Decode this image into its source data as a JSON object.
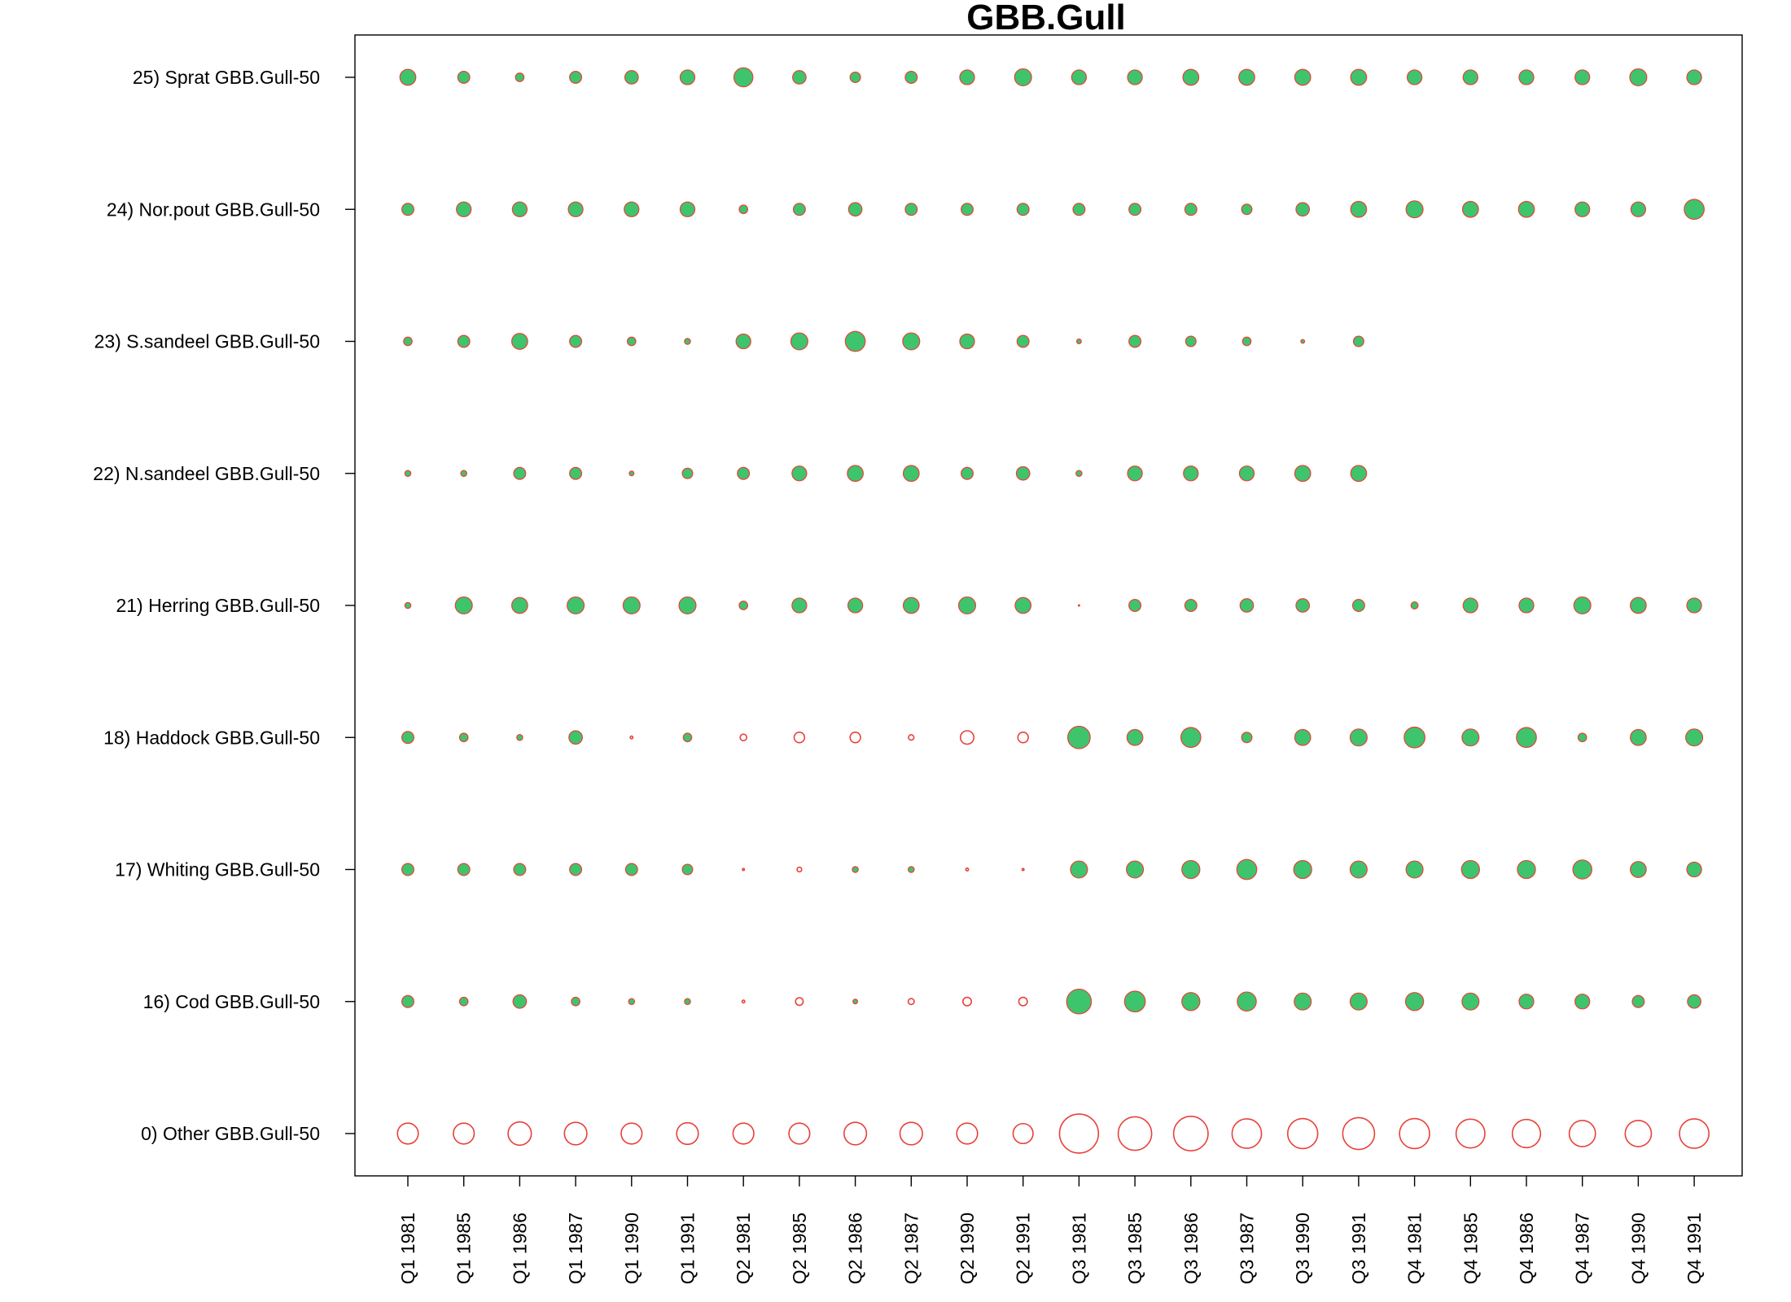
{
  "chart_data": {
    "type": "scatter",
    "title": "GBB.Gull",
    "xlabel": "",
    "ylabel": "",
    "categories": [
      "Q1 1981",
      "Q1 1985",
      "Q1 1986",
      "Q1 1987",
      "Q1 1990",
      "Q1 1991",
      "Q2 1981",
      "Q2 1985",
      "Q2 1986",
      "Q2 1987",
      "Q2 1990",
      "Q2 1991",
      "Q3 1981",
      "Q3 1985",
      "Q3 1986",
      "Q3 1987",
      "Q3 1990",
      "Q3 1991",
      "Q4 1981",
      "Q4 1985",
      "Q4 1986",
      "Q4 1987",
      "Q4 1990",
      "Q4 1991"
    ],
    "rows": [
      {
        "label": "25) Sprat GBB.Gull-50",
        "values": [
          0.35,
          0.2,
          0.1,
          0.2,
          0.25,
          0.3,
          0.5,
          0.25,
          0.15,
          0.2,
          0.3,
          0.4,
          0.3,
          0.3,
          0.35,
          0.35,
          0.35,
          0.35,
          0.3,
          0.3,
          0.3,
          0.3,
          0.4,
          0.3
        ]
      },
      {
        "label": "24) Nor.pout GBB.Gull-50",
        "values": [
          0.2,
          0.3,
          0.3,
          0.3,
          0.3,
          0.3,
          0.1,
          0.2,
          0.25,
          0.2,
          0.2,
          0.2,
          0.2,
          0.2,
          0.2,
          0.15,
          0.25,
          0.35,
          0.4,
          0.35,
          0.35,
          0.3,
          0.3,
          0.55
        ]
      },
      {
        "label": "23) S.sandeel GBB.Gull-50",
        "values": [
          0.1,
          0.2,
          0.35,
          0.2,
          0.1,
          0.05,
          0.3,
          0.4,
          0.55,
          0.4,
          0.3,
          0.2,
          0.03,
          0.2,
          0.15,
          0.1,
          0.02,
          0.15,
          null,
          null,
          null,
          null,
          null,
          null
        ]
      },
      {
        "label": "22) N.sandeel GBB.Gull-50",
        "values": [
          0.05,
          0.05,
          0.2,
          0.2,
          0.03,
          0.15,
          0.2,
          0.3,
          0.35,
          0.35,
          0.2,
          0.25,
          0.05,
          0.3,
          0.3,
          0.3,
          0.35,
          0.35,
          null,
          null,
          null,
          null,
          null,
          null
        ]
      },
      {
        "label": "21) Herring GBB.Gull-50",
        "values": [
          0.05,
          0.4,
          0.35,
          0.4,
          0.4,
          0.4,
          0.1,
          0.3,
          0.3,
          0.35,
          0.4,
          0.35,
          0.003,
          0.2,
          0.2,
          0.25,
          0.25,
          0.2,
          0.07,
          0.3,
          0.3,
          0.4,
          0.35,
          0.3
        ]
      },
      {
        "label": "18) Haddock GBB.Gull-50",
        "values": [
          0.2,
          0.1,
          0.05,
          0.25,
          -0.01,
          0.1,
          -0.06,
          -0.15,
          -0.15,
          -0.04,
          -0.25,
          -0.15,
          0.7,
          0.35,
          0.55,
          0.15,
          0.35,
          0.4,
          0.6,
          0.4,
          0.55,
          0.1,
          0.35,
          0.4
        ]
      },
      {
        "label": "17) Whiting GBB.Gull-50",
        "values": [
          0.2,
          0.2,
          0.2,
          0.2,
          0.2,
          0.15,
          -0.005,
          -0.03,
          0.05,
          0.05,
          -0.01,
          -0.005,
          0.4,
          0.4,
          0.45,
          0.55,
          0.45,
          0.4,
          0.4,
          0.45,
          0.45,
          0.5,
          0.35,
          0.3
        ]
      },
      {
        "label": "16) Cod GBB.Gull-50",
        "values": [
          0.2,
          0.1,
          0.25,
          0.1,
          0.05,
          0.05,
          -0.01,
          -0.08,
          0.03,
          -0.05,
          -0.1,
          -0.1,
          0.85,
          0.6,
          0.45,
          0.5,
          0.4,
          0.4,
          0.45,
          0.4,
          0.3,
          0.3,
          0.2,
          0.25
        ]
      },
      {
        "label": "0) Other GBB.Gull-50",
        "values": [
          -0.6,
          -0.6,
          -0.75,
          -0.7,
          -0.6,
          -0.65,
          -0.6,
          -0.6,
          -0.7,
          -0.7,
          -0.6,
          -0.55,
          -2.1,
          -1.55,
          -1.65,
          -1.2,
          -1.25,
          -1.4,
          -1.25,
          -1.15,
          -1.1,
          -0.95,
          -0.95,
          -1.2
        ]
      }
    ],
    "positive_fill": "#3ec46d",
    "outline_color": "#e8413a",
    "grid": false,
    "legend": "none"
  }
}
